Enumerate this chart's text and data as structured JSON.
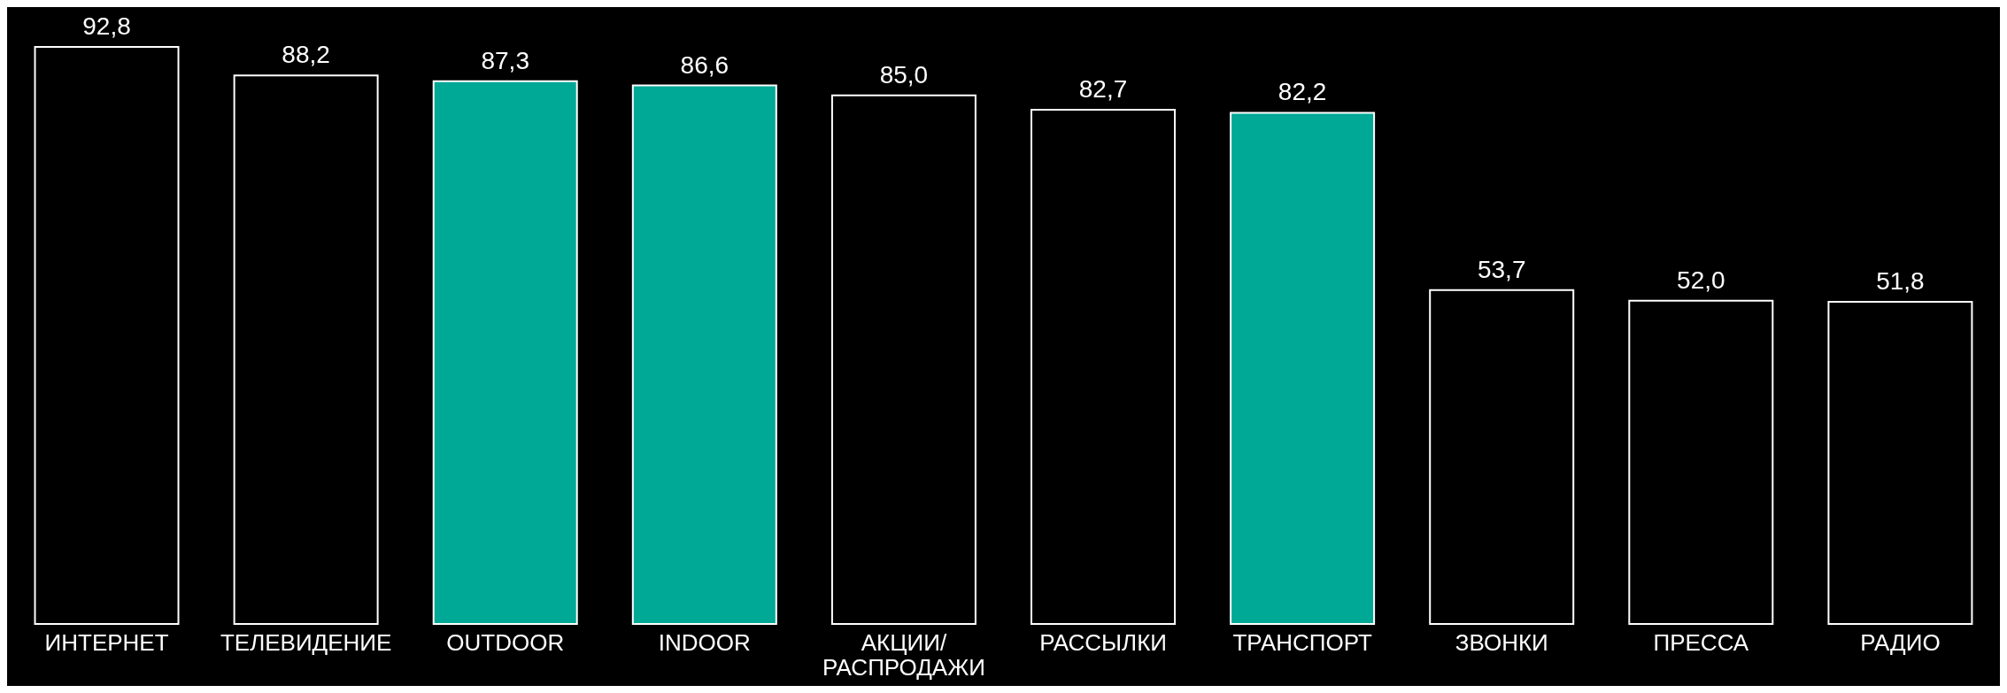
{
  "chart_data": {
    "type": "bar",
    "categories": [
      "ИНТЕРНЕТ",
      "ТЕЛЕВИДЕНИЕ",
      "OUTDOOR",
      "INDOOR",
      "АКЦИИ/ РАСПРОДАЖИ",
      "РАССЫЛКИ",
      "ТРАНСПОРТ",
      "ЗВОНКИ",
      "ПРЕССА",
      "РАДИО"
    ],
    "values": [
      92.8,
      88.2,
      87.3,
      86.6,
      85.0,
      82.7,
      82.2,
      53.7,
      52.0,
      51.8
    ],
    "value_labels": [
      "92,8",
      "88,2",
      "87,3",
      "86,6",
      "85,0",
      "82,7",
      "82,2",
      "53,7",
      "52,0",
      "51,8"
    ],
    "colors": [
      "#000000",
      "#000000",
      "#00a896",
      "#00a896",
      "#000000",
      "#000000",
      "#00a896",
      "#000000",
      "#000000",
      "#000000"
    ]
  }
}
